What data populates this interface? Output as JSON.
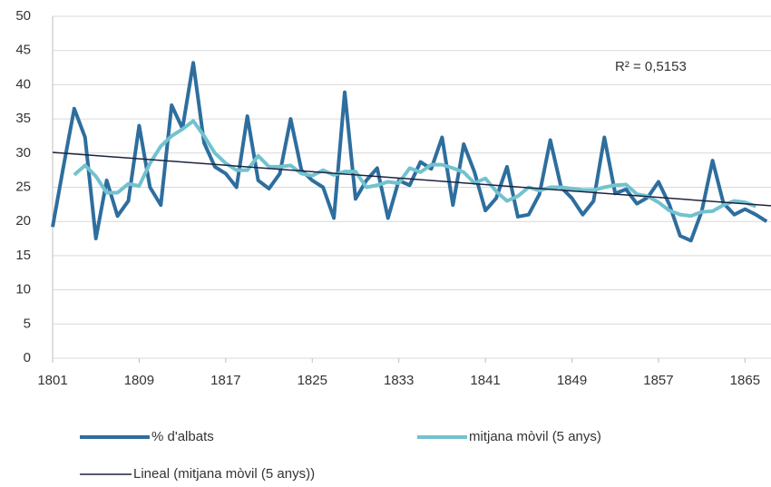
{
  "chart_data": {
    "type": "line",
    "x": [
      1801,
      1802,
      1803,
      1804,
      1805,
      1806,
      1807,
      1808,
      1809,
      1810,
      1811,
      1812,
      1813,
      1814,
      1815,
      1816,
      1817,
      1818,
      1819,
      1820,
      1821,
      1822,
      1823,
      1824,
      1825,
      1826,
      1827,
      1828,
      1829,
      1830,
      1831,
      1832,
      1833,
      1834,
      1835,
      1836,
      1837,
      1838,
      1839,
      1840,
      1841,
      1842,
      1843,
      1844,
      1845,
      1846,
      1847,
      1848,
      1849,
      1850,
      1851,
      1852,
      1853,
      1854,
      1855,
      1856,
      1857,
      1858,
      1859,
      1860,
      1861,
      1862,
      1863,
      1864,
      1865,
      1866,
      1867
    ],
    "series": [
      {
        "name": "% d'albats",
        "color": "#2e6e9e",
        "values": [
          19.2,
          28,
          36.5,
          32.3,
          17.5,
          26,
          20.8,
          23,
          34,
          25,
          22.4,
          37,
          33.6,
          43.2,
          31.5,
          28,
          27,
          25,
          35.4,
          26,
          24.8,
          27,
          35,
          27.5,
          26,
          25,
          20.5,
          38.9,
          23.3,
          26,
          27.8,
          20.5,
          26,
          25.3,
          28.7,
          27.7,
          32.3,
          22.4,
          31.3,
          27.2,
          21.6,
          23.4,
          28,
          20.7,
          21,
          24,
          31.9,
          25,
          23.4,
          21,
          23,
          32.3,
          24.1,
          24.7,
          22.6,
          23.5,
          25.8,
          22.5,
          17.9,
          17.2,
          21.5,
          28.9,
          22.7,
          21,
          21.8,
          21,
          20
        ]
      },
      {
        "name": "mitjana mòvil (5 anys)",
        "color": "#72c2cf",
        "values": [
          null,
          null,
          26.8,
          28.2,
          26.6,
          24.2,
          24.2,
          25.5,
          25.2,
          28.5,
          31,
          32.5,
          33.5,
          34.7,
          32.5,
          30,
          28.5,
          27.5,
          27.5,
          29.6,
          28,
          28,
          28.2,
          27,
          26.7,
          27.5,
          26.8,
          27.3,
          27.3,
          25,
          25.3,
          25.8,
          25.6,
          27.8,
          27.2,
          28.3,
          28.3,
          27.8,
          27.2,
          25.6,
          26.3,
          24.4,
          23,
          23.7,
          25,
          24.5,
          25,
          25,
          24.8,
          24.6,
          24.6,
          25,
          25.3,
          25.4,
          24,
          23.7,
          22.8,
          21.6,
          21,
          20.8,
          21.4,
          21.5,
          22.4,
          23,
          22.8,
          22.2,
          null
        ]
      },
      {
        "name": "Lineal (mitjana mòvil (5 anys))",
        "color": "#1c2340",
        "x": [
          1801,
          1867.4
        ],
        "values": [
          30.1,
          22.3
        ]
      }
    ],
    "annotations": [
      "R² = 0,5153"
    ],
    "xlim": [
      1801,
      1867.4
    ],
    "xticks": [
      1801,
      1809,
      1817,
      1825,
      1833,
      1841,
      1849,
      1857,
      1865
    ],
    "ylim": [
      0,
      50
    ],
    "yticks": [
      0,
      5,
      10,
      15,
      20,
      25,
      30,
      35,
      40,
      45,
      50
    ],
    "grid": true,
    "legend": "bottom"
  }
}
